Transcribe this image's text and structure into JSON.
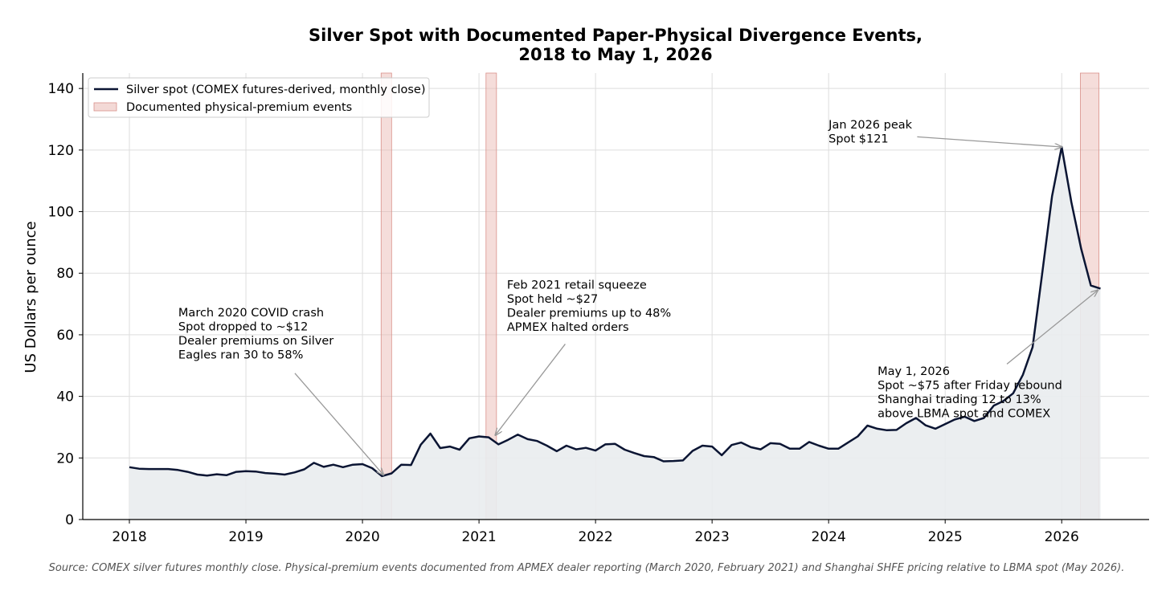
{
  "chart_data": {
    "type": "line",
    "title_lines": [
      "Silver Spot with Documented Paper-Physical Divergence Events,",
      "2018 to May 1, 2026"
    ],
    "ylabel": "US Dollars per ounce",
    "xlabel": "",
    "ylim": [
      0,
      145
    ],
    "xlim": [
      2017.6,
      2026.75
    ],
    "yticks": [
      0,
      20,
      40,
      60,
      80,
      100,
      120,
      140
    ],
    "xticks": [
      2018,
      2019,
      2020,
      2021,
      2022,
      2023,
      2024,
      2025,
      2026
    ],
    "grid": true,
    "legend_position": "top-left",
    "colors": {
      "line": "#0b1533",
      "fill": "#e9ecee",
      "event": "#e8b3ad"
    },
    "series": [
      {
        "name": "Silver spot (COMEX futures-derived, monthly close)",
        "x": [
          2018.0,
          2018.083,
          2018.167,
          2018.25,
          2018.333,
          2018.417,
          2018.5,
          2018.583,
          2018.667,
          2018.75,
          2018.833,
          2018.917,
          2019.0,
          2019.083,
          2019.167,
          2019.25,
          2019.333,
          2019.417,
          2019.5,
          2019.583,
          2019.667,
          2019.75,
          2019.833,
          2019.917,
          2020.0,
          2020.083,
          2020.167,
          2020.25,
          2020.333,
          2020.417,
          2020.5,
          2020.583,
          2020.667,
          2020.75,
          2020.833,
          2020.917,
          2021.0,
          2021.083,
          2021.167,
          2021.25,
          2021.333,
          2021.417,
          2021.5,
          2021.583,
          2021.667,
          2021.75,
          2021.833,
          2021.917,
          2022.0,
          2022.083,
          2022.167,
          2022.25,
          2022.333,
          2022.417,
          2022.5,
          2022.583,
          2022.667,
          2022.75,
          2022.833,
          2022.917,
          2023.0,
          2023.083,
          2023.167,
          2023.25,
          2023.333,
          2023.417,
          2023.5,
          2023.583,
          2023.667,
          2023.75,
          2023.833,
          2023.917,
          2024.0,
          2024.083,
          2024.167,
          2024.25,
          2024.333,
          2024.417,
          2024.5,
          2024.583,
          2024.667,
          2024.75,
          2024.833,
          2024.917,
          2025.0,
          2025.083,
          2025.167,
          2025.25,
          2025.333,
          2025.417,
          2025.5,
          2025.583,
          2025.667,
          2025.75,
          2025.833,
          2025.917,
          2026.0,
          2026.083,
          2026.167,
          2026.25,
          2026.333
        ],
        "values": [
          17.0,
          16.5,
          16.4,
          16.4,
          16.4,
          16.1,
          15.5,
          14.6,
          14.3,
          14.7,
          14.4,
          15.5,
          15.7,
          15.6,
          15.1,
          14.9,
          14.6,
          15.3,
          16.3,
          18.4,
          17.1,
          17.8,
          17.0,
          17.8,
          18.0,
          16.7,
          14.1,
          15.0,
          17.8,
          17.7,
          24.3,
          27.9,
          23.2,
          23.7,
          22.7,
          26.4,
          27.0,
          26.7,
          24.4,
          25.9,
          27.6,
          26.1,
          25.5,
          24.0,
          22.2,
          24.0,
          22.8,
          23.3,
          22.4,
          24.4,
          24.6,
          22.7,
          21.6,
          20.6,
          20.3,
          18.9,
          19.0,
          19.2,
          22.3,
          24.0,
          23.7,
          20.9,
          24.2,
          25.0,
          23.5,
          22.8,
          24.8,
          24.6,
          23.0,
          23.0,
          25.2,
          24.0,
          23.0,
          23.0,
          25.0,
          27.0,
          30.5,
          29.5,
          29.0,
          29.1,
          31.3,
          33.0,
          30.6,
          29.5,
          31.0,
          32.5,
          33.4,
          32.0,
          33.0,
          37.0,
          38.5,
          41.0,
          47.0,
          56.0,
          80.0,
          105.0,
          121.0,
          103.0,
          88.0,
          76.0,
          75.0
        ]
      }
    ],
    "event_series_name": "Documented physical-premium events",
    "events": [
      {
        "x0": 2020.16,
        "x1": 2020.25
      },
      {
        "x0": 2021.06,
        "x1": 2021.15
      },
      {
        "x0": 2026.16,
        "x1": 2026.32
      }
    ],
    "annotations": [
      {
        "lines": [
          "March 2020 COVID crash",
          "Spot dropped to ~$12",
          "Dealer premiums on Silver",
          "Eagles ran 30 to 58%"
        ],
        "text_x": 2018.42,
        "text_y": 66,
        "target_x": 2020.18,
        "target_y": 14.5,
        "arrow_from_x": 2019.42,
        "arrow_from_y": 47.5
      },
      {
        "lines": [
          "Feb 2021 retail squeeze",
          "Spot held ~$27",
          "Dealer premiums up to 48%",
          "APMEX halted orders"
        ],
        "text_x": 2021.24,
        "text_y": 75,
        "target_x": 2021.14,
        "target_y": 27.4,
        "arrow_from_x": 2021.74,
        "arrow_from_y": 57
      },
      {
        "lines": [
          "Jan 2026 peak",
          "Spot $121"
        ],
        "text_x": 2024.0,
        "text_y": 127,
        "target_x": 2026.0,
        "target_y": 121,
        "arrow_from_x": 2024.76,
        "arrow_from_y": 124.3
      },
      {
        "lines": [
          "May 1, 2026",
          "Spot ~$75 after Friday rebound",
          "Shanghai trading 12 to 13%",
          "above LBMA spot and COMEX"
        ],
        "text_x": 2024.42,
        "text_y": 47,
        "target_x": 2026.31,
        "target_y": 74.5,
        "arrow_from_x": 2025.53,
        "arrow_from_y": 50.5
      }
    ],
    "source": "Source: COMEX silver futures monthly close. Physical-premium events documented from APMEX dealer reporting (March 2020, February 2021) and Shanghai SHFE pricing relative to LBMA spot (May 2026)."
  }
}
